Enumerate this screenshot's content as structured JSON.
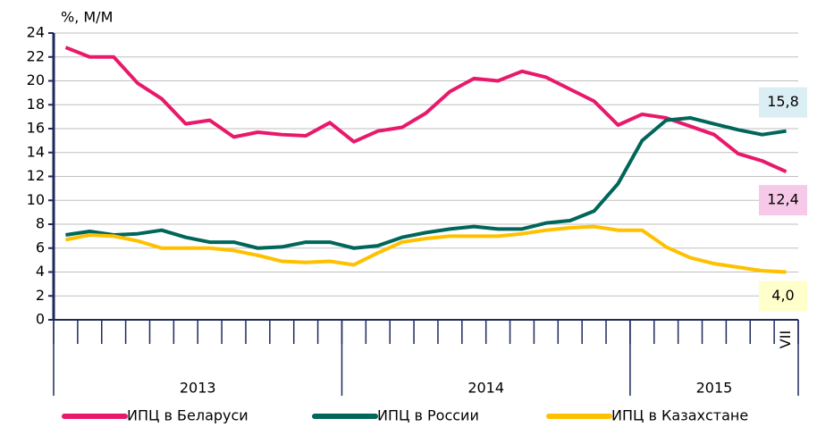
{
  "chart_data": {
    "type": "line",
    "y_axis_label": "%, М/М",
    "categories": [
      null,
      null,
      null,
      null,
      null,
      null,
      null,
      null,
      null,
      null,
      null,
      null,
      null,
      null,
      null,
      null,
      null,
      null,
      null,
      null,
      null,
      null,
      null,
      null,
      null,
      null,
      null,
      null,
      null,
      null,
      "VII"
    ],
    "x_groups": [
      {
        "label": "2013",
        "count": 12
      },
      {
        "label": "2014",
        "count": 12
      },
      {
        "label": "2015",
        "count": 7
      }
    ],
    "ylim": [
      0,
      24
    ],
    "yticks": [
      0,
      2,
      4,
      6,
      8,
      10,
      12,
      14,
      16,
      18,
      20,
      22,
      24
    ],
    "grid": true,
    "legend": "bottom",
    "series": [
      {
        "name": "ИПЦ в Беларуси",
        "color": "#e8196b",
        "label_background": "#f6c9e8",
        "values": [
          22.8,
          22.0,
          22.0,
          19.8,
          18.5,
          16.4,
          16.7,
          15.3,
          15.7,
          15.5,
          15.4,
          16.5,
          14.9,
          15.8,
          16.1,
          17.3,
          19.1,
          20.2,
          20.0,
          20.8,
          20.3,
          19.3,
          18.3,
          16.3,
          17.2,
          16.9,
          16.2,
          15.5,
          13.9,
          13.3,
          12.4
        ],
        "value_labels": [
          null,
          null,
          null,
          null,
          null,
          null,
          null,
          null,
          null,
          null,
          null,
          null,
          null,
          null,
          null,
          null,
          null,
          null,
          null,
          null,
          null,
          null,
          null,
          null,
          null,
          null,
          null,
          null,
          null,
          null,
          "12,4"
        ]
      },
      {
        "name": "ИПЦ в России",
        "color": "#00665a",
        "label_background": "#dbeef4",
        "values": [
          7.1,
          7.4,
          7.1,
          7.2,
          7.5,
          6.9,
          6.5,
          6.5,
          6.0,
          6.1,
          6.5,
          6.5,
          6.0,
          6.2,
          6.9,
          7.3,
          7.6,
          7.8,
          7.6,
          7.6,
          8.1,
          8.3,
          9.1,
          11.4,
          15.0,
          16.7,
          16.9,
          16.4,
          15.9,
          15.5,
          15.8
        ],
        "value_labels": [
          null,
          null,
          null,
          null,
          null,
          null,
          null,
          null,
          null,
          null,
          null,
          null,
          null,
          null,
          null,
          null,
          null,
          null,
          null,
          null,
          null,
          null,
          null,
          null,
          null,
          null,
          null,
          null,
          null,
          null,
          "15,8"
        ]
      },
      {
        "name": "ИПЦ в Казахстане",
        "color": "#ffc000",
        "label_background": "#ffffcc",
        "values": [
          6.7,
          7.1,
          7.0,
          6.6,
          6.0,
          6.0,
          6.0,
          5.8,
          5.4,
          4.9,
          4.8,
          4.9,
          4.6,
          5.6,
          6.5,
          6.8,
          7.0,
          7.0,
          7.0,
          7.2,
          7.5,
          7.7,
          7.8,
          7.5,
          7.5,
          6.1,
          5.2,
          4.7,
          4.4,
          4.1,
          4.0
        ],
        "value_labels": [
          null,
          null,
          null,
          null,
          null,
          null,
          null,
          null,
          null,
          null,
          null,
          null,
          null,
          null,
          null,
          null,
          null,
          null,
          null,
          null,
          null,
          null,
          null,
          null,
          null,
          null,
          null,
          null,
          null,
          null,
          "4,0"
        ]
      }
    ]
  }
}
